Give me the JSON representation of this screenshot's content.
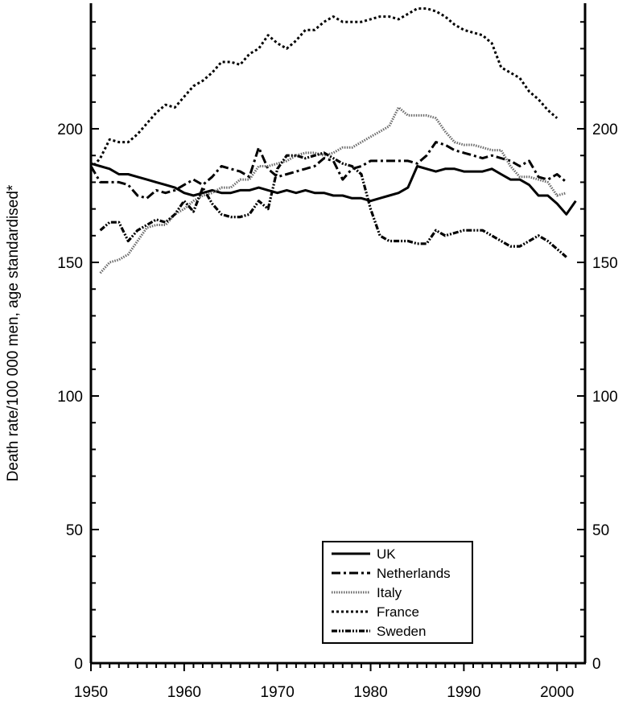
{
  "chart_data": {
    "type": "line",
    "ylabel": "Death rate/100 000 men, age standardised*",
    "xlim": [
      1950,
      2003
    ],
    "ylim": [
      0,
      247
    ],
    "x_ticks": [
      1950,
      1960,
      1970,
      1980,
      1990,
      2000
    ],
    "y_ticks": [
      0,
      50,
      100,
      150,
      200
    ],
    "legend_position": "bottom-center",
    "series": [
      {
        "name": "UK",
        "style": "solid",
        "x": [
          1950,
          1951,
          1952,
          1953,
          1954,
          1955,
          1956,
          1957,
          1958,
          1959,
          1960,
          1961,
          1962,
          1963,
          1964,
          1965,
          1966,
          1967,
          1968,
          1969,
          1970,
          1971,
          1972,
          1973,
          1974,
          1975,
          1976,
          1977,
          1978,
          1979,
          1980,
          1981,
          1982,
          1983,
          1984,
          1985,
          1986,
          1987,
          1988,
          1989,
          1990,
          1991,
          1992,
          1993,
          1994,
          1995,
          1996,
          1997,
          1998,
          1999,
          2000,
          2001,
          2002
        ],
        "values": [
          187,
          186,
          185,
          183,
          183,
          182,
          181,
          180,
          179,
          178,
          176,
          175,
          176,
          177,
          176,
          176,
          177,
          177,
          178,
          177,
          176,
          177,
          176,
          177,
          176,
          176,
          175,
          175,
          174,
          174,
          173,
          174,
          175,
          176,
          178,
          186,
          185,
          184,
          185,
          185,
          184,
          184,
          184,
          185,
          183,
          181,
          181,
          179,
          175,
          175,
          172,
          168,
          173
        ]
      },
      {
        "name": "Netherlands",
        "style": "dashdot",
        "x": [
          1950,
          1951,
          1952,
          1953,
          1954,
          1955,
          1956,
          1957,
          1958,
          1959,
          1960,
          1961,
          1962,
          1963,
          1964,
          1965,
          1966,
          1967,
          1968,
          1969,
          1970,
          1971,
          1972,
          1973,
          1974,
          1975,
          1976,
          1977,
          1978,
          1979,
          1980,
          1981,
          1982,
          1983,
          1984,
          1985,
          1986,
          1987,
          1988,
          1989,
          1990,
          1991,
          1992,
          1993,
          1994,
          1995,
          1996,
          1997,
          1998,
          1999,
          2000,
          2001
        ],
        "values": [
          186,
          180,
          180,
          180,
          179,
          175,
          174,
          177,
          176,
          177,
          179,
          181,
          179,
          182,
          186,
          185,
          184,
          182,
          193,
          185,
          182,
          183,
          184,
          185,
          186,
          189,
          188,
          181,
          185,
          186,
          188,
          188,
          188,
          188,
          188,
          187,
          190,
          195,
          194,
          192,
          191,
          190,
          189,
          190,
          189,
          188,
          186,
          188,
          182,
          181,
          183,
          180
        ]
      },
      {
        "name": "Italy",
        "style": "dense",
        "x": [
          1951,
          1952,
          1953,
          1954,
          1955,
          1956,
          1957,
          1958,
          1959,
          1960,
          1961,
          1962,
          1963,
          1964,
          1965,
          1966,
          1967,
          1968,
          1969,
          1970,
          1971,
          1972,
          1973,
          1974,
          1975,
          1976,
          1977,
          1978,
          1979,
          1980,
          1981,
          1982,
          1983,
          1984,
          1985,
          1986,
          1987,
          1988,
          1989,
          1990,
          1991,
          1992,
          1993,
          1994,
          1995,
          1996,
          1997,
          1998,
          1999,
          2000,
          2001
        ],
        "values": [
          146,
          150,
          151,
          153,
          158,
          163,
          164,
          164,
          168,
          170,
          173,
          175,
          176,
          178,
          178,
          181,
          181,
          186,
          186,
          187,
          188,
          190,
          191,
          191,
          190,
          191,
          193,
          193,
          195,
          197,
          199,
          201,
          208,
          205,
          205,
          205,
          204,
          199,
          195,
          194,
          194,
          193,
          192,
          192,
          186,
          182,
          182,
          181,
          180,
          175,
          176
        ]
      },
      {
        "name": "France",
        "style": "dotted",
        "x": [
          1950,
          1951,
          1952,
          1953,
          1954,
          1955,
          1956,
          1957,
          1958,
          1959,
          1960,
          1961,
          1962,
          1963,
          1964,
          1965,
          1966,
          1967,
          1968,
          1969,
          1970,
          1971,
          1972,
          1973,
          1974,
          1975,
          1976,
          1977,
          1978,
          1979,
          1980,
          1981,
          1982,
          1983,
          1984,
          1985,
          1986,
          1987,
          1988,
          1989,
          1990,
          1991,
          1992,
          1993,
          1994,
          1995,
          1996,
          1997,
          1998,
          1999,
          2000
        ],
        "values": [
          185,
          189,
          196,
          195,
          195,
          198,
          202,
          206,
          209,
          208,
          212,
          216,
          218,
          221,
          225,
          225,
          224,
          228,
          230,
          235,
          232,
          230,
          233,
          237,
          237,
          240,
          242,
          240,
          240,
          240,
          241,
          242,
          242,
          241,
          243,
          245,
          245,
          244,
          242,
          239,
          237,
          236,
          235,
          232,
          223,
          221,
          219,
          214,
          211,
          207,
          204
        ]
      },
      {
        "name": "Sweden",
        "style": "dashdotdot",
        "x": [
          1951,
          1952,
          1953,
          1954,
          1955,
          1956,
          1957,
          1958,
          1959,
          1960,
          1961,
          1962,
          1963,
          1964,
          1965,
          1966,
          1967,
          1968,
          1969,
          1970,
          1971,
          1972,
          1973,
          1974,
          1975,
          1976,
          1977,
          1978,
          1979,
          1980,
          1981,
          1982,
          1983,
          1984,
          1985,
          1986,
          1987,
          1988,
          1989,
          1990,
          1991,
          1992,
          1993,
          1994,
          1995,
          1996,
          1997,
          1998,
          1999,
          2000,
          2001
        ],
        "values": [
          162,
          165,
          165,
          158,
          162,
          164,
          166,
          165,
          168,
          173,
          169,
          178,
          172,
          168,
          167,
          167,
          168,
          173,
          170,
          185,
          190,
          190,
          189,
          190,
          191,
          189,
          187,
          186,
          183,
          170,
          160,
          158,
          158,
          158,
          157,
          157,
          162,
          160,
          161,
          162,
          162,
          162,
          160,
          158,
          156,
          156,
          158,
          160,
          158,
          155,
          152
        ]
      }
    ]
  }
}
